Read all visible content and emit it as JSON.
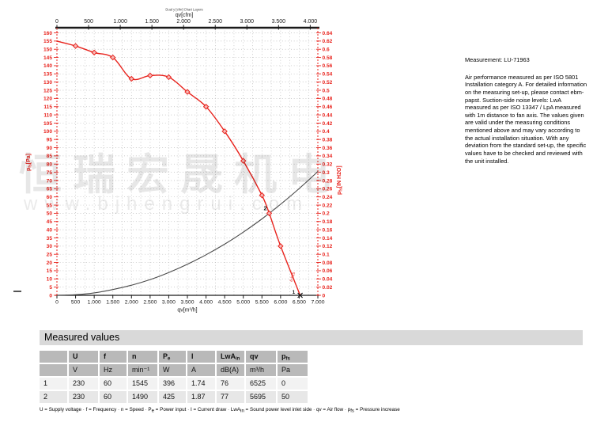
{
  "watermark": {
    "cn": "恒瑞宏晟机电",
    "url": "www.bjhengrui.com"
  },
  "measurement": {
    "label": "Measurement: LU-71963",
    "note": "Air performance measured as per ISO 5801 Installation category A. For detailed information on the measuring set-up, please contact ebm-papst. Suction-side noise levels: LwA measured as per ISO 13347 / LpA measured with 1m distance to fan axis. The values given are valid under the measuring conditions mentioned above and may vary according to the actual installation situation. With any deviation from the standard set-up, the specific values have to be checked and reviewed with the unit installed."
  },
  "chart_data": {
    "type": "line",
    "header_small": "Dual y [cfm] Chart Layers",
    "axes": {
      "bottom": {
        "label": "qv[m³/h]",
        "min": 0,
        "max": 7000,
        "step": 500,
        "tick_labels": [
          "0",
          "500",
          "1.000",
          "1.500",
          "2.000",
          "2.500",
          "3.000",
          "3.500",
          "4.000",
          "4.500",
          "5.000",
          "5.500",
          "6.000",
          "6.500",
          "7.000"
        ]
      },
      "top": {
        "label": "qv[cfm]",
        "min": 0,
        "max": 4000,
        "step": 500,
        "cfm_to_m3h": 1.699,
        "tick_labels": [
          "0",
          "500",
          "1.000",
          "1.500",
          "2.000",
          "2.500",
          "3.000",
          "3.500",
          "4.000"
        ]
      },
      "left": {
        "label_main": "p",
        "label_sub": "fs",
        "label_rest": "[Pa]",
        "min": 0,
        "max": 160,
        "step": 5,
        "color": "#e8231d"
      },
      "right": {
        "label_main": "p",
        "label_sub": "fs",
        "label_rest": "[IN H2O]",
        "min": 0,
        "max": 0.64,
        "step": 0.02,
        "color": "#e8231d"
      }
    },
    "grid": {
      "x_minor_step": 250,
      "y_minor_step": 5,
      "color": "#b3b3b3",
      "grid_on": true
    },
    "series": [
      {
        "name": "air-performance-curve",
        "color": "#e8231d",
        "points": [
          [
            0,
            155
          ],
          [
            500,
            152
          ],
          [
            1000,
            148
          ],
          [
            1500,
            145
          ],
          [
            2000,
            132
          ],
          [
            2500,
            134
          ],
          [
            3000,
            133
          ],
          [
            3500,
            124
          ],
          [
            4000,
            115
          ],
          [
            4500,
            100
          ],
          [
            5000,
            82
          ],
          [
            5500,
            61
          ],
          [
            5695,
            50
          ],
          [
            6000,
            30
          ],
          [
            6525,
            0
          ]
        ],
        "marker_points": [
          [
            500,
            152
          ],
          [
            1000,
            148
          ],
          [
            1500,
            145
          ],
          [
            2000,
            132
          ],
          [
            2500,
            134
          ],
          [
            3000,
            133
          ],
          [
            3500,
            124
          ],
          [
            4000,
            115
          ],
          [
            4500,
            100
          ],
          [
            5000,
            82
          ],
          [
            5500,
            61
          ],
          [
            6000,
            30
          ]
        ]
      },
      {
        "name": "system-resistance-curve",
        "color": "#4a4a4a",
        "points": [
          [
            0,
            0
          ],
          [
            500,
            0.4
          ],
          [
            1000,
            1.5
          ],
          [
            1500,
            3.5
          ],
          [
            2000,
            6.2
          ],
          [
            2500,
            9.6
          ],
          [
            3000,
            13.9
          ],
          [
            3500,
            18.9
          ],
          [
            4000,
            24.7
          ],
          [
            4500,
            31.2
          ],
          [
            5000,
            38.5
          ],
          [
            5500,
            46.6
          ],
          [
            6000,
            55.5
          ],
          [
            6500,
            65.1
          ],
          [
            7000,
            75.5
          ]
        ]
      }
    ],
    "operating_points": [
      {
        "id": "1",
        "qv": 6525,
        "pfs": 0
      },
      {
        "id": "2",
        "qv": 5695,
        "pfs": 50
      }
    ],
    "annotation": {
      "text": "6.525"
    }
  },
  "table": {
    "title": "Measured values",
    "headers": [
      {
        "t": ""
      },
      {
        "t": "U"
      },
      {
        "t": "f"
      },
      {
        "t": "n"
      },
      {
        "t": "P",
        "s": "e"
      },
      {
        "t": "I"
      },
      {
        "t": "LwA",
        "s": "in"
      },
      {
        "t": "qv"
      },
      {
        "t": "p",
        "s": "fs"
      }
    ],
    "units": [
      "",
      "V",
      "Hz",
      "min⁻¹",
      "W",
      "A",
      "dB(A)",
      "m³/h",
      "Pa"
    ],
    "rows": [
      [
        "1",
        "230",
        "60",
        "1545",
        "396",
        "1.74",
        "76",
        "6525",
        "0"
      ],
      [
        "2",
        "230",
        "60",
        "1490",
        "425",
        "1.87",
        "77",
        "5695",
        "50"
      ]
    ],
    "footnote_segments": [
      {
        "t": "U = Supply voltage · f = Frequency · n = Speed · P"
      },
      {
        "s": "e"
      },
      {
        "t": " = Power input · I = Current draw · LwA"
      },
      {
        "s": "in"
      },
      {
        "t": " = Sound power level inlet side · qv = Air flow · p"
      },
      {
        "s": "fs"
      },
      {
        "t": " = Pressure increase"
      }
    ]
  }
}
